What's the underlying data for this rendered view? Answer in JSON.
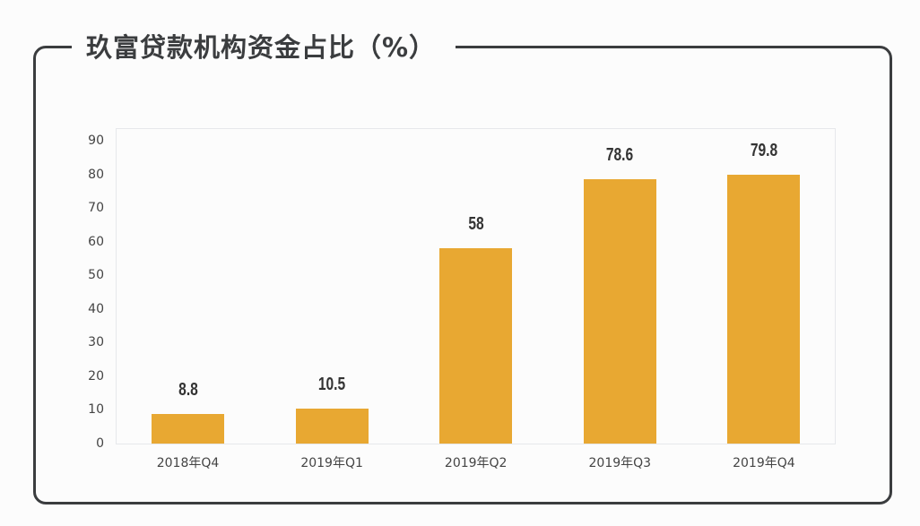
{
  "title": "玖富贷款机构资金占比（%）",
  "colors": {
    "bar": "#E8A832",
    "frame": "#3B3D3F",
    "axis": "#E6E8EB"
  },
  "chart_data": {
    "type": "bar",
    "title": "玖富贷款机构资金占比（%）",
    "categories": [
      "2018年Q4",
      "2019年Q1",
      "2019年Q2",
      "2019年Q3",
      "2019年Q4"
    ],
    "values": [
      8.8,
      10.5,
      58,
      78.6,
      79.8
    ],
    "data_labels": [
      "8.8",
      "10.5",
      "58",
      "78.6",
      "79.8"
    ],
    "xlabel": "",
    "ylabel": "",
    "ylim": [
      0,
      90
    ],
    "yticks": [
      "0",
      "10",
      "20",
      "30",
      "40",
      "50",
      "60",
      "70",
      "80",
      "90"
    ],
    "grid": false,
    "legend": null
  }
}
